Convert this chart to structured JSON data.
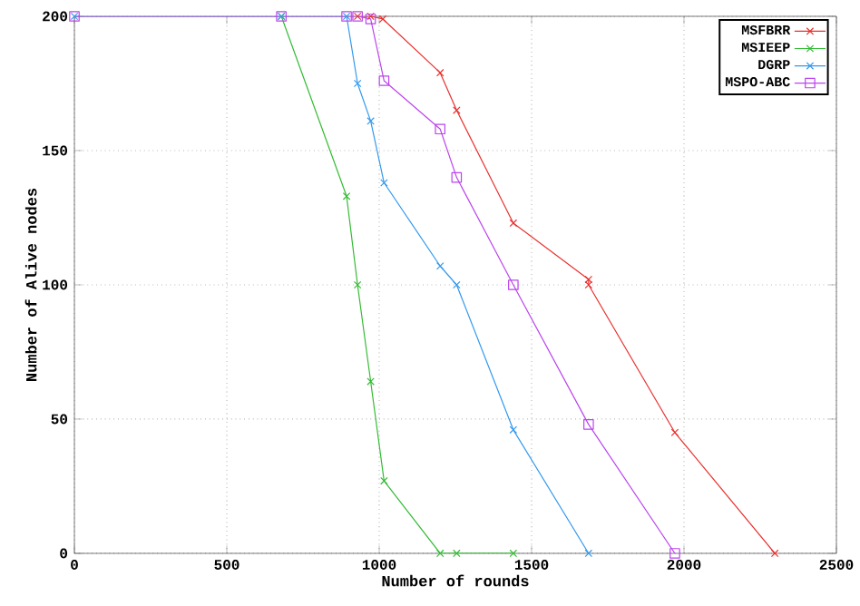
{
  "chart_data": {
    "type": "line",
    "xlabel": "Number of rounds",
    "ylabel": "Number of Alive nodes",
    "xlim": [
      0,
      2500
    ],
    "xticks": [
      0,
      500,
      1000,
      1500,
      2000,
      2500
    ],
    "ylim": [
      0,
      200
    ],
    "yticks": [
      0,
      50,
      100,
      150,
      200
    ],
    "grid": true,
    "legend": "top right",
    "series": [
      {
        "name": "MSFBRR",
        "color": "#e8312f",
        "marker": "cross",
        "x": [
          929,
          972,
          1012,
          1200,
          1254,
          1440,
          1687,
          1687,
          1970,
          2298
        ],
        "values": [
          200,
          200,
          199,
          179,
          165,
          123,
          102,
          100,
          45,
          0
        ]
      },
      {
        "name": "MSIEEP",
        "color": "#33bb33",
        "marker": "cross",
        "x": [
          679,
          893,
          929,
          972,
          1016,
          1200,
          1254,
          1440
        ],
        "values": [
          200,
          133,
          100,
          64,
          27,
          0,
          0,
          0
        ]
      },
      {
        "name": "DGRP",
        "color": "#3399ee",
        "marker": "cross",
        "x": [
          0,
          679,
          893,
          929,
          972,
          1016,
          1200,
          1254,
          1440,
          1687
        ],
        "values": [
          200,
          200,
          200,
          175,
          161,
          138,
          107,
          100,
          46,
          0
        ]
      },
      {
        "name": "MSPO-ABC",
        "color": "#bb44ee",
        "marker": "square",
        "x": [
          0,
          679,
          893,
          929,
          972,
          1016,
          1200,
          1254,
          1440,
          1687,
          1970
        ],
        "values": [
          200,
          200,
          200,
          200,
          199,
          176,
          158,
          140,
          100,
          48,
          0
        ]
      }
    ]
  }
}
